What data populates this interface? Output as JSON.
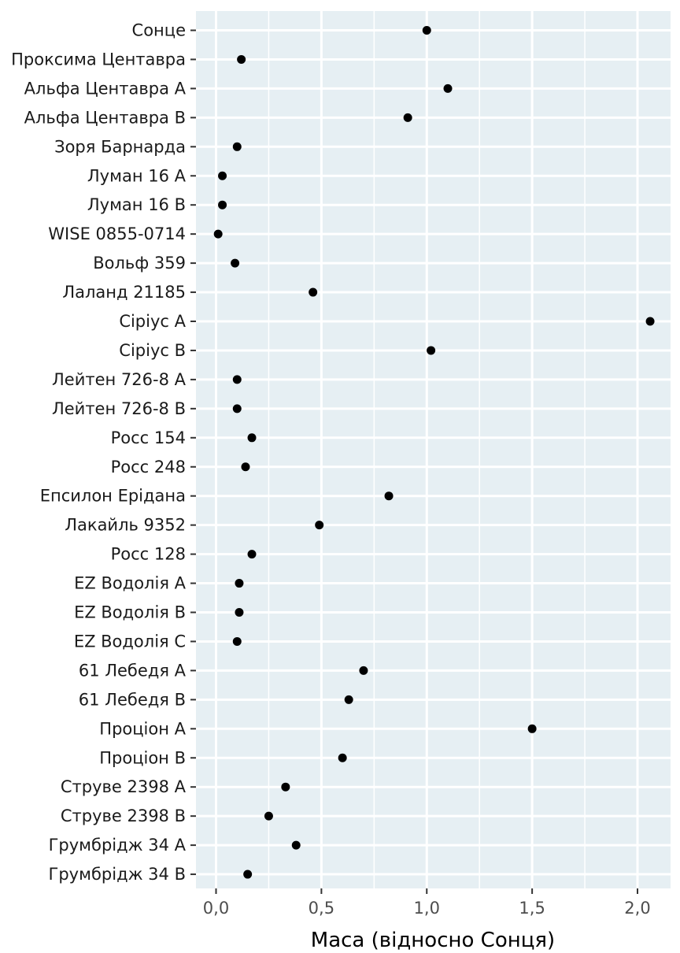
{
  "chart_data": {
    "type": "scatter",
    "title": "",
    "xlabel": "Маса (відносно Сонця)",
    "ylabel": "",
    "xlim": [
      -0.1,
      2.15
    ],
    "x_ticks": [
      0.0,
      0.5,
      1.0,
      1.5,
      2.0
    ],
    "x_tick_labels": [
      "0,0",
      "0,5",
      "1,0",
      "1,5",
      "2,0"
    ],
    "grid": true,
    "colors": {
      "panel": "#e6eff3",
      "grid": "#ffffff",
      "point": "#000000"
    },
    "categories": [
      "Сонце",
      "Проксима Центавра",
      "Альфа Центавра А",
      "Альфа Центавра В",
      "Зоря Барнарда",
      "Луман 16 А",
      "Луман 16 В",
      "WISE 0855-0714",
      "Вольф 359",
      "Лаланд 21185",
      "Сіріус А",
      "Сіріус В",
      "Лейтен 726-8 А",
      "Лейтен 726-8 В",
      "Росс 154",
      "Росс 248",
      "Епсилон Ерідана",
      "Лакайль 9352",
      "Росс 128",
      "EZ Водолія A",
      "EZ Водолія B",
      "EZ Водолія C",
      "61 Лебедя А",
      "61 Лебедя В",
      "Проціон А",
      "Проціон В",
      "Струве 2398 А",
      "Струве 2398 В",
      "Грумбрідж 34 А",
      "Грумбрідж 34 В"
    ],
    "values": [
      1.0,
      0.12,
      1.1,
      0.91,
      0.1,
      0.03,
      0.03,
      0.01,
      0.09,
      0.46,
      2.06,
      1.02,
      0.1,
      0.1,
      0.17,
      0.14,
      0.82,
      0.49,
      0.17,
      0.11,
      0.11,
      0.1,
      0.7,
      0.63,
      1.5,
      0.6,
      0.33,
      0.25,
      0.38,
      0.15
    ]
  }
}
